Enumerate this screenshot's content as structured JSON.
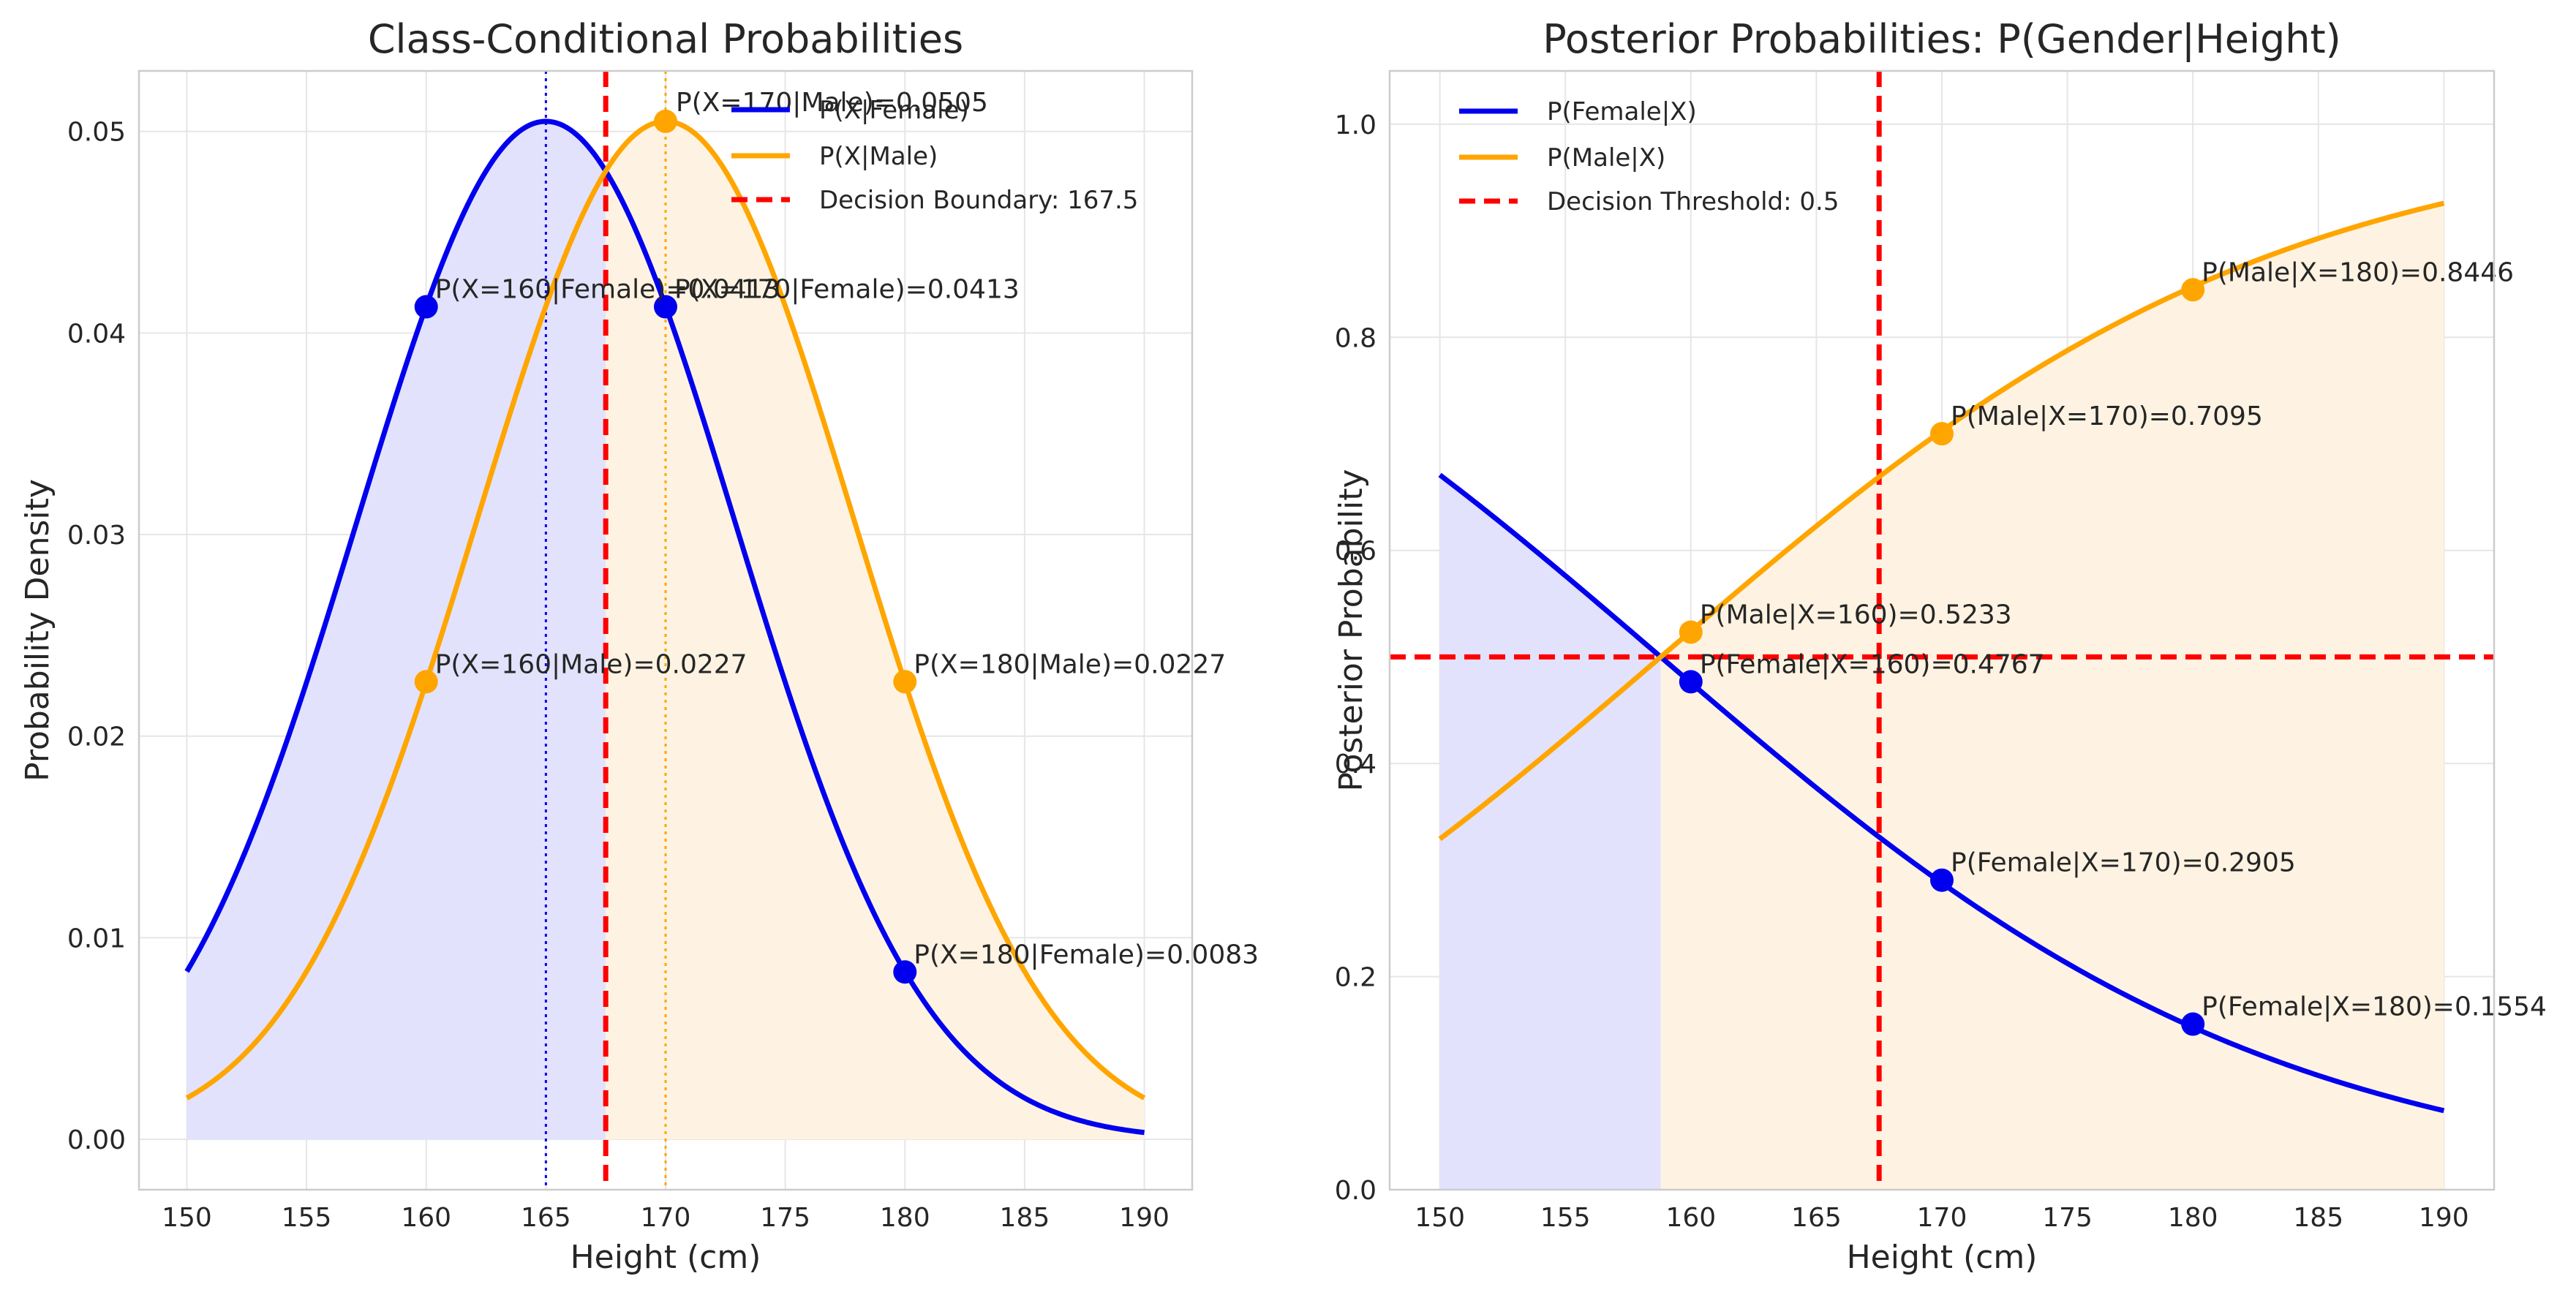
{
  "chart_data": [
    {
      "type": "line",
      "title": "Class-Conditional Probabilities",
      "xlabel": "Height (cm)",
      "ylabel": "Probability Density",
      "xlim": [
        148,
        192
      ],
      "ylim": [
        -0.0025,
        0.053
      ],
      "xticks": [
        150,
        155,
        160,
        165,
        170,
        175,
        180,
        185,
        190
      ],
      "yticks": [
        0.0,
        0.01,
        0.02,
        0.03,
        0.04,
        0.05
      ],
      "ytick_labels": [
        "0.00",
        "0.01",
        "0.02",
        "0.03",
        "0.04",
        "0.05"
      ],
      "grid": true,
      "legend_position": "top-right",
      "series": [
        {
          "name": "P(X|Female)",
          "color": "#0000ee",
          "dist": "normal",
          "mean": 165,
          "sd": 7.9,
          "x_range": [
            150,
            190
          ]
        },
        {
          "name": "P(X|Male)",
          "color": "#ffa500",
          "dist": "normal",
          "mean": 170,
          "sd": 7.9,
          "x_range": [
            150,
            190
          ]
        }
      ],
      "decision_boundary": {
        "name": "Decision Boundary: 167.5",
        "x": 167.5,
        "color": "#ff0000"
      },
      "mean_lines": [
        {
          "x": 165,
          "color": "#0000ee"
        },
        {
          "x": 170,
          "color": "#ffa500"
        }
      ],
      "fills": [
        {
          "from": 150,
          "to": 167.5,
          "series": 0,
          "color": "#e2e2fd"
        },
        {
          "from": 167.5,
          "to": 190,
          "series": 1,
          "color": "#fef3e2"
        }
      ],
      "points": [
        {
          "x": 160,
          "y": 0.0413,
          "color": "#0000ee",
          "label": "P(X=160|Female)=0.0413"
        },
        {
          "x": 170,
          "y": 0.0413,
          "color": "#0000ee",
          "label": "P(X=170|Female)=0.0413"
        },
        {
          "x": 180,
          "y": 0.0083,
          "color": "#0000ee",
          "label": "P(X=180|Female)=0.0083"
        },
        {
          "x": 160,
          "y": 0.0227,
          "color": "#ffa500",
          "label": "P(X=160|Male)=0.0227"
        },
        {
          "x": 170,
          "y": 0.0505,
          "color": "#ffa500",
          "label": "P(X=170|Male)=0.0505"
        },
        {
          "x": 180,
          "y": 0.0227,
          "color": "#ffa500",
          "label": "P(X=180|Male)=0.0227"
        }
      ]
    },
    {
      "type": "line",
      "title": "Posterior Probabilities: P(Gender|Height)",
      "xlabel": "Height (cm)",
      "ylabel": "Posterior Probability",
      "xlim": [
        148,
        192
      ],
      "ylim": [
        0,
        1.05
      ],
      "xticks": [
        150,
        155,
        160,
        165,
        170,
        175,
        180,
        185,
        190
      ],
      "yticks": [
        0.0,
        0.2,
        0.4,
        0.6,
        0.8,
        1.0
      ],
      "ytick_labels": [
        "0.0",
        "0.2",
        "0.4",
        "0.6",
        "0.8",
        "1.0"
      ],
      "grid": true,
      "legend_position": "top-left",
      "series": [
        {
          "name": "P(Female|X)",
          "color": "#0000ee",
          "dist": "logistic",
          "midpoint": 158.8,
          "slope": -0.0809,
          "x_range": [
            150,
            190
          ]
        },
        {
          "name": "P(Male|X)",
          "color": "#ffa500",
          "dist": "logistic",
          "midpoint": 158.8,
          "slope": 0.0809,
          "x_range": [
            150,
            190
          ]
        }
      ],
      "decision_boundary": {
        "x": 167.5,
        "color": "#ff0000"
      },
      "threshold": {
        "name": "Decision Threshold: 0.5",
        "y": 0.5,
        "color": "#ff0000"
      },
      "fills": [
        {
          "from": 150,
          "to": 158.8,
          "series": 0,
          "color": "#e2e2fd"
        },
        {
          "from": 158.8,
          "to": 190,
          "series": 1,
          "color": "#fef3e2"
        }
      ],
      "points": [
        {
          "x": 160,
          "y": 0.4767,
          "color": "#0000ee",
          "label": "P(Female|X=160)=0.4767"
        },
        {
          "x": 170,
          "y": 0.2905,
          "color": "#0000ee",
          "label": "P(Female|X=170)=0.2905"
        },
        {
          "x": 180,
          "y": 0.1554,
          "color": "#0000ee",
          "label": "P(Female|X=180)=0.1554"
        },
        {
          "x": 160,
          "y": 0.5233,
          "color": "#ffa500",
          "label": "P(Male|X=160)=0.5233"
        },
        {
          "x": 170,
          "y": 0.7095,
          "color": "#ffa500",
          "label": "P(Male|X=170)=0.7095"
        },
        {
          "x": 180,
          "y": 0.8446,
          "color": "#ffa500",
          "label": "P(Male|X=180)=0.8446"
        }
      ]
    }
  ]
}
